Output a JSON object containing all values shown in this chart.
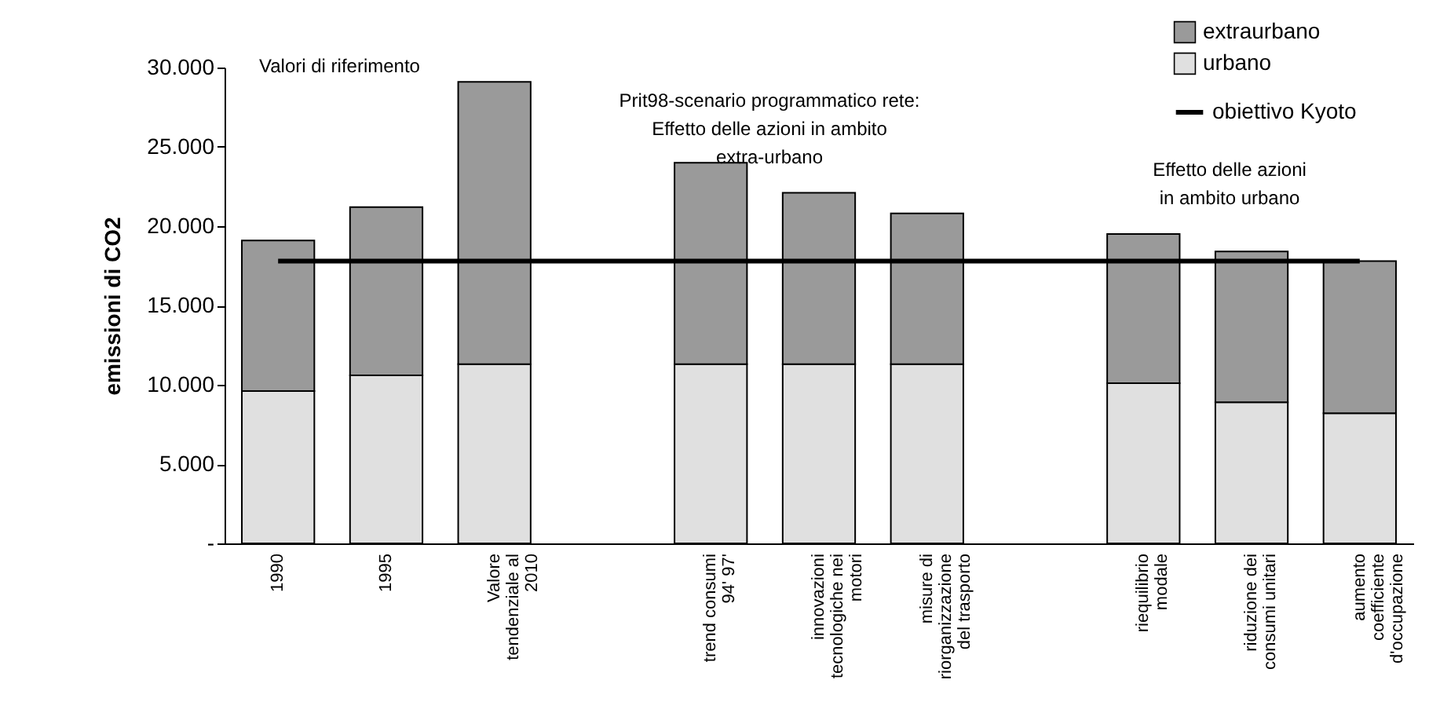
{
  "chart_data": {
    "type": "bar",
    "stacked": true,
    "ylabel": "emissioni di CO2",
    "categories": [
      "1990",
      "1995",
      "Valore tendenziale al 2010",
      null,
      "trend consumi 94' 97'",
      "innovazioni tecnologiche nei motori",
      "misure di riorganizzazione del trasporto",
      null,
      "riequilibrio modale",
      "riduzione dei consumi unitari",
      "aumento coefficiente d'occupazione"
    ],
    "series": [
      {
        "name": "urbano",
        "color": "#e0e0e0",
        "values": [
          9600,
          10600,
          11300,
          null,
          11300,
          11300,
          11300,
          null,
          10100,
          8900,
          8200
        ]
      },
      {
        "name": "extraurbano",
        "color": "#9a9a9a",
        "values": [
          9500,
          10600,
          17800,
          null,
          12700,
          10800,
          9500,
          null,
          9400,
          9500,
          9600
        ]
      },
      {
        "name": "obiettivo Kyoto",
        "type": "line",
        "color": "#000000",
        "values": [
          17800,
          17800,
          17800,
          17800,
          17800,
          17800,
          17800,
          17800,
          17800,
          17800,
          17800
        ]
      }
    ],
    "ylim": [
      0,
      30000
    ],
    "yticks": [
      {
        "value": 0,
        "label": "-"
      },
      {
        "value": 5000,
        "label": "5.000"
      },
      {
        "value": 10000,
        "label": "10.000"
      },
      {
        "value": 15000,
        "label": "15.000"
      },
      {
        "value": 20000,
        "label": "20.000"
      },
      {
        "value": 25000,
        "label": "25.000"
      },
      {
        "value": 30000,
        "label": "30.000"
      }
    ],
    "legend": "top right",
    "marker": "none",
    "annotations": [
      "Valori di riferimento",
      "Prit98-scenario programmatico rete: Effetto delle azioni in ambito extra-urbano",
      "Effetto delle azioni in ambito urbano"
    ]
  }
}
